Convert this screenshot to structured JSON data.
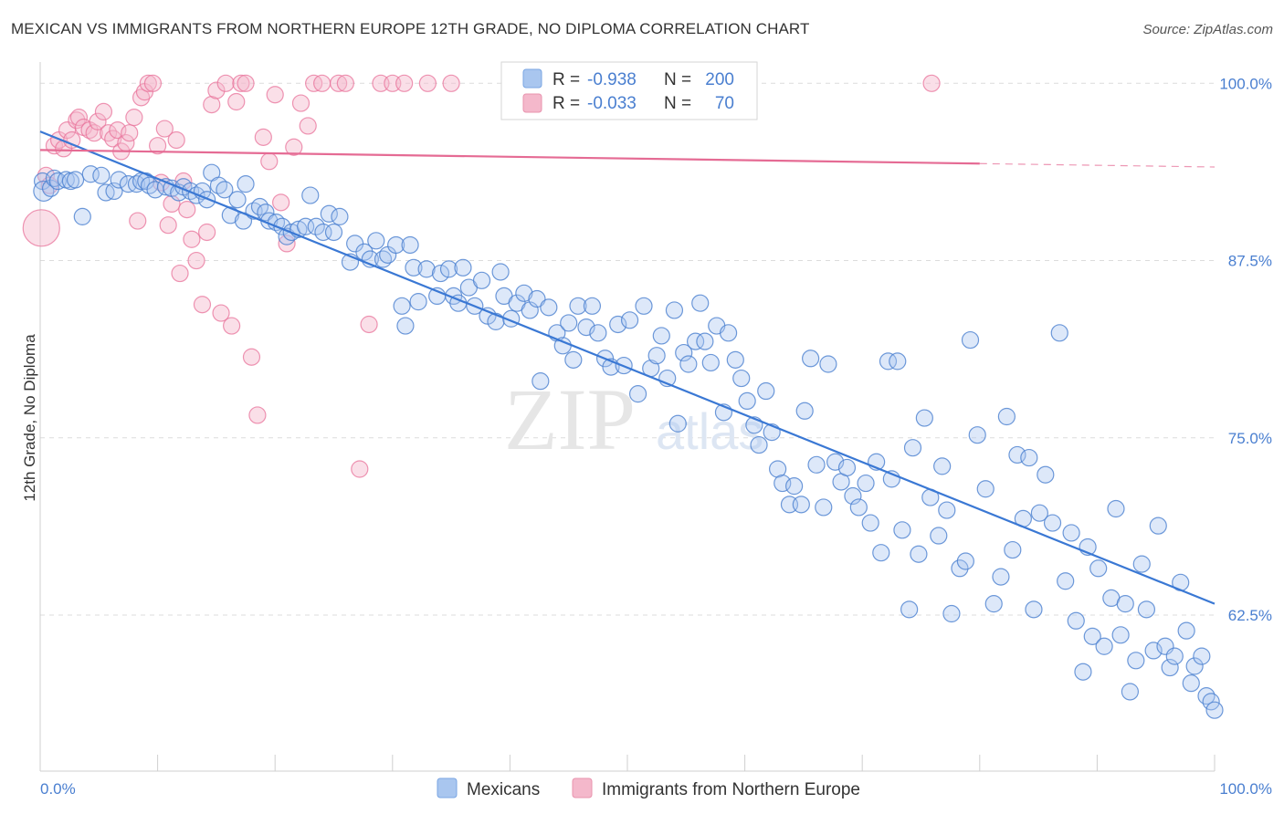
{
  "title": "MEXICAN VS IMMIGRANTS FROM NORTHERN EUROPE 12TH GRADE, NO DIPLOMA CORRELATION CHART",
  "source": "Source: ZipAtlas.com",
  "watermark": {
    "zip": "ZIP",
    "atlas": "atlas"
  },
  "colors": {
    "blue": "#4a7fd0",
    "blue_fill": "#a9c6ef",
    "blue_line": "#3a78d4",
    "pink": "#e8719a",
    "pink_fill": "#f4b8cb",
    "pink_line": "#e56b94",
    "grid": "#dcdcdc",
    "axis_text": "#4a7fd0"
  },
  "legend": {
    "row1": {
      "r_label": "R =",
      "r_value": "-0.938",
      "n_label": "N =",
      "n_value": "200"
    },
    "row2": {
      "r_label": "R =",
      "r_value": "-0.033",
      "n_label": "N =",
      "n_value": "70"
    }
  },
  "bottom_legend": {
    "series1": "Mexicans",
    "series2": "Immigrants from Northern Europe"
  },
  "chart_data": {
    "type": "scatter",
    "title": "MEXICAN VS IMMIGRANTS FROM NORTHERN EUROPE 12TH GRADE, NO DIPLOMA CORRELATION CHART",
    "xlabel": "",
    "ylabel": "12th Grade, No Diploma",
    "xlim": [
      0,
      100
    ],
    "ylim": [
      51.5,
      101.5
    ],
    "x_tick_labels": [
      "0.0%",
      "100.0%"
    ],
    "y_ticks": [
      100.0,
      87.5,
      75.0,
      62.5
    ],
    "y_tick_labels": [
      "100.0%",
      "87.5%",
      "75.0%",
      "62.5%"
    ],
    "grid": true,
    "legend_position": "top-center",
    "series": [
      {
        "name": "Mexicans",
        "R": -0.938,
        "N": 200,
        "trend": {
          "x": [
            0,
            100
          ],
          "y": [
            96.6,
            63.3
          ]
        },
        "points": [
          [
            0.2,
            93.1
          ],
          [
            0.3,
            92.4
          ],
          [
            0.9,
            92.6
          ],
          [
            1.2,
            93.3
          ],
          [
            1.5,
            93.1
          ],
          [
            2.2,
            93.2
          ],
          [
            2.6,
            93.1
          ],
          [
            3.0,
            93.2
          ],
          [
            3.6,
            90.6
          ],
          [
            4.3,
            93.6
          ],
          [
            5.2,
            93.5
          ],
          [
            5.6,
            92.3
          ],
          [
            6.3,
            92.4
          ],
          [
            6.7,
            93.2
          ],
          [
            7.5,
            92.9
          ],
          [
            8.2,
            92.9
          ],
          [
            8.6,
            93.1
          ],
          [
            9.0,
            93.1
          ],
          [
            9.3,
            92.8
          ],
          [
            9.8,
            92.5
          ],
          [
            10.7,
            92.7
          ],
          [
            11.2,
            92.6
          ],
          [
            11.8,
            92.3
          ],
          [
            12.2,
            92.7
          ],
          [
            12.8,
            92.4
          ],
          [
            13.3,
            92.1
          ],
          [
            13.8,
            92.4
          ],
          [
            14.2,
            91.8
          ],
          [
            14.6,
            93.7
          ],
          [
            15.2,
            92.8
          ],
          [
            15.7,
            92.5
          ],
          [
            16.2,
            90.7
          ],
          [
            16.8,
            91.8
          ],
          [
            17.3,
            90.3
          ],
          [
            17.5,
            92.9
          ],
          [
            18.2,
            91.0
          ],
          [
            18.7,
            91.3
          ],
          [
            19.2,
            90.9
          ],
          [
            19.5,
            90.3
          ],
          [
            20.1,
            90.2
          ],
          [
            20.6,
            89.9
          ],
          [
            21.0,
            89.2
          ],
          [
            21.4,
            89.5
          ],
          [
            22.0,
            89.7
          ],
          [
            22.6,
            89.9
          ],
          [
            23.0,
            92.1
          ],
          [
            23.5,
            89.9
          ],
          [
            24.1,
            89.5
          ],
          [
            24.6,
            90.8
          ],
          [
            25.0,
            89.5
          ],
          [
            25.5,
            90.6
          ],
          [
            26.4,
            87.4
          ],
          [
            26.8,
            88.7
          ],
          [
            27.6,
            88.1
          ],
          [
            28.1,
            87.6
          ],
          [
            28.6,
            88.9
          ],
          [
            29.2,
            87.6
          ],
          [
            29.6,
            87.9
          ],
          [
            30.3,
            88.6
          ],
          [
            30.8,
            84.3
          ],
          [
            31.1,
            82.9
          ],
          [
            31.5,
            88.6
          ],
          [
            31.8,
            87.0
          ],
          [
            32.2,
            84.6
          ],
          [
            32.9,
            86.9
          ],
          [
            33.8,
            85.0
          ],
          [
            34.1,
            86.6
          ],
          [
            34.8,
            86.9
          ],
          [
            35.2,
            85.0
          ],
          [
            35.6,
            84.5
          ],
          [
            36.0,
            87.0
          ],
          [
            36.5,
            85.6
          ],
          [
            37.0,
            84.3
          ],
          [
            37.6,
            86.1
          ],
          [
            38.1,
            83.6
          ],
          [
            38.8,
            83.2
          ],
          [
            39.2,
            86.7
          ],
          [
            39.5,
            85.0
          ],
          [
            40.1,
            83.4
          ],
          [
            40.6,
            84.5
          ],
          [
            41.2,
            85.2
          ],
          [
            41.7,
            84.0
          ],
          [
            42.3,
            84.8
          ],
          [
            42.6,
            79.0
          ],
          [
            43.3,
            84.2
          ],
          [
            44.0,
            82.4
          ],
          [
            44.5,
            81.5
          ],
          [
            45.0,
            83.1
          ],
          [
            45.4,
            80.5
          ],
          [
            45.8,
            84.3
          ],
          [
            46.5,
            82.8
          ],
          [
            47.0,
            84.3
          ],
          [
            47.5,
            82.4
          ],
          [
            48.1,
            80.6
          ],
          [
            48.6,
            80.0
          ],
          [
            49.2,
            83.0
          ],
          [
            49.7,
            80.1
          ],
          [
            50.2,
            83.3
          ],
          [
            50.9,
            78.1
          ],
          [
            51.4,
            84.3
          ],
          [
            52.0,
            79.9
          ],
          [
            52.5,
            80.8
          ],
          [
            52.9,
            82.2
          ],
          [
            53.4,
            79.2
          ],
          [
            54.0,
            84.0
          ],
          [
            54.3,
            76.0
          ],
          [
            54.8,
            81.0
          ],
          [
            55.2,
            80.2
          ],
          [
            55.8,
            81.8
          ],
          [
            56.2,
            84.5
          ],
          [
            56.6,
            81.8
          ],
          [
            57.1,
            80.3
          ],
          [
            57.6,
            82.9
          ],
          [
            58.2,
            76.8
          ],
          [
            58.6,
            82.4
          ],
          [
            59.2,
            80.5
          ],
          [
            59.7,
            79.2
          ],
          [
            60.2,
            77.6
          ],
          [
            60.8,
            75.9
          ],
          [
            61.2,
            74.5
          ],
          [
            61.8,
            78.3
          ],
          [
            62.3,
            75.4
          ],
          [
            62.8,
            72.8
          ],
          [
            63.2,
            71.8
          ],
          [
            63.8,
            70.3
          ],
          [
            64.2,
            71.6
          ],
          [
            64.8,
            70.3
          ],
          [
            65.1,
            76.9
          ],
          [
            65.6,
            80.6
          ],
          [
            66.1,
            73.1
          ],
          [
            66.7,
            70.1
          ],
          [
            67.1,
            80.2
          ],
          [
            67.7,
            73.3
          ],
          [
            68.2,
            71.9
          ],
          [
            68.7,
            72.9
          ],
          [
            69.2,
            70.9
          ],
          [
            69.7,
            70.1
          ],
          [
            70.3,
            71.8
          ],
          [
            70.7,
            69.0
          ],
          [
            71.2,
            73.3
          ],
          [
            71.6,
            66.9
          ],
          [
            72.2,
            80.4
          ],
          [
            72.5,
            72.1
          ],
          [
            73.0,
            80.4
          ],
          [
            73.4,
            68.5
          ],
          [
            74.0,
            62.9
          ],
          [
            74.3,
            74.3
          ],
          [
            74.8,
            66.8
          ],
          [
            75.3,
            76.4
          ],
          [
            75.8,
            70.8
          ],
          [
            76.5,
            68.1
          ],
          [
            76.8,
            73.0
          ],
          [
            77.2,
            69.9
          ],
          [
            77.6,
            62.6
          ],
          [
            78.3,
            65.8
          ],
          [
            78.8,
            66.3
          ],
          [
            79.2,
            81.9
          ],
          [
            79.8,
            75.2
          ],
          [
            80.5,
            71.4
          ],
          [
            81.2,
            63.3
          ],
          [
            81.8,
            65.2
          ],
          [
            82.3,
            76.5
          ],
          [
            82.8,
            67.1
          ],
          [
            83.2,
            73.8
          ],
          [
            83.7,
            69.3
          ],
          [
            84.2,
            73.6
          ],
          [
            84.6,
            62.9
          ],
          [
            85.1,
            69.7
          ],
          [
            85.6,
            72.4
          ],
          [
            86.2,
            69.0
          ],
          [
            86.8,
            82.4
          ],
          [
            87.3,
            64.9
          ],
          [
            87.8,
            68.3
          ],
          [
            88.2,
            62.1
          ],
          [
            88.8,
            58.5
          ],
          [
            89.2,
            67.3
          ],
          [
            89.6,
            61.0
          ],
          [
            90.1,
            65.8
          ],
          [
            90.6,
            60.3
          ],
          [
            91.2,
            63.7
          ],
          [
            91.6,
            70.0
          ],
          [
            92.0,
            61.1
          ],
          [
            92.4,
            63.3
          ],
          [
            92.8,
            57.1
          ],
          [
            93.3,
            59.3
          ],
          [
            93.8,
            66.1
          ],
          [
            94.2,
            62.9
          ],
          [
            94.8,
            60.0
          ],
          [
            95.2,
            68.8
          ],
          [
            95.8,
            60.3
          ],
          [
            96.2,
            58.8
          ],
          [
            96.6,
            59.6
          ],
          [
            97.1,
            64.8
          ],
          [
            97.6,
            61.4
          ],
          [
            98.0,
            57.7
          ],
          [
            98.3,
            58.9
          ],
          [
            98.9,
            59.6
          ],
          [
            99.3,
            56.8
          ],
          [
            99.7,
            56.4
          ],
          [
            100.0,
            55.8
          ]
        ]
      },
      {
        "name": "Immigrants from Northern Europe",
        "R": -0.033,
        "N": 70,
        "trend": {
          "x": [
            0,
            100
          ],
          "y": [
            95.3,
            94.1
          ],
          "solid_until_x": 80
        },
        "points": [
          [
            0.1,
            89.8
          ],
          [
            0.5,
            93.5
          ],
          [
            0.8,
            92.8
          ],
          [
            1.2,
            95.6
          ],
          [
            1.6,
            96.0
          ],
          [
            2.0,
            95.4
          ],
          [
            2.3,
            96.7
          ],
          [
            2.7,
            96.0
          ],
          [
            3.1,
            97.4
          ],
          [
            3.3,
            97.6
          ],
          [
            3.7,
            96.9
          ],
          [
            4.2,
            96.7
          ],
          [
            4.6,
            96.5
          ],
          [
            4.9,
            97.3
          ],
          [
            5.4,
            98.0
          ],
          [
            5.8,
            96.5
          ],
          [
            6.2,
            96.1
          ],
          [
            6.6,
            96.7
          ],
          [
            6.9,
            95.2
          ],
          [
            7.3,
            95.8
          ],
          [
            7.6,
            96.5
          ],
          [
            8.0,
            97.6
          ],
          [
            8.3,
            90.3
          ],
          [
            8.6,
            99.0
          ],
          [
            8.9,
            99.4
          ],
          [
            9.2,
            100.0
          ],
          [
            9.6,
            100.0
          ],
          [
            10.0,
            95.6
          ],
          [
            10.3,
            93.0
          ],
          [
            10.6,
            96.8
          ],
          [
            10.9,
            90.0
          ],
          [
            11.2,
            91.5
          ],
          [
            11.6,
            96.0
          ],
          [
            11.9,
            86.6
          ],
          [
            12.2,
            93.1
          ],
          [
            12.5,
            91.1
          ],
          [
            12.9,
            89.0
          ],
          [
            13.3,
            87.5
          ],
          [
            13.8,
            84.4
          ],
          [
            14.2,
            89.5
          ],
          [
            14.6,
            98.5
          ],
          [
            15.0,
            99.5
          ],
          [
            15.4,
            83.8
          ],
          [
            15.8,
            100.0
          ],
          [
            16.3,
            82.9
          ],
          [
            16.7,
            98.7
          ],
          [
            17.1,
            100.0
          ],
          [
            17.5,
            100.0
          ],
          [
            18.0,
            80.7
          ],
          [
            18.5,
            76.6
          ],
          [
            19.0,
            96.2
          ],
          [
            19.5,
            94.5
          ],
          [
            20.0,
            99.2
          ],
          [
            20.5,
            91.6
          ],
          [
            21.0,
            88.7
          ],
          [
            21.6,
            95.5
          ],
          [
            22.2,
            98.6
          ],
          [
            22.8,
            97.0
          ],
          [
            23.3,
            100.0
          ],
          [
            24.0,
            100.0
          ],
          [
            25.4,
            100.0
          ],
          [
            26.0,
            100.0
          ],
          [
            27.2,
            72.8
          ],
          [
            28.0,
            83.0
          ],
          [
            29.0,
            100.0
          ],
          [
            30.0,
            100.0
          ],
          [
            31.0,
            100.0
          ],
          [
            33.0,
            100.0
          ],
          [
            35.0,
            100.0
          ],
          [
            75.9,
            100.0
          ]
        ]
      }
    ]
  }
}
